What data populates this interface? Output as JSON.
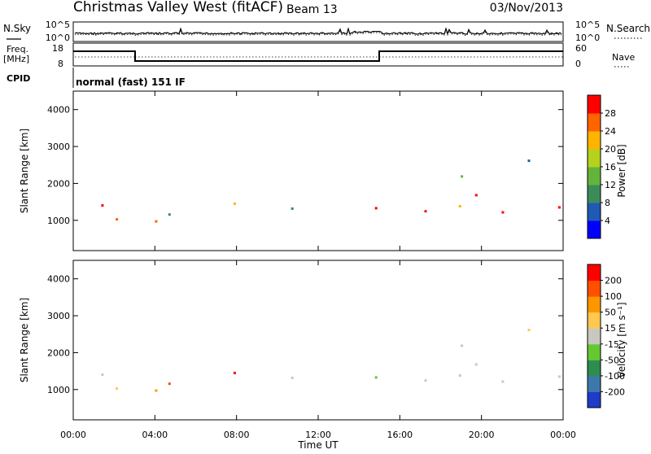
{
  "header": {
    "title": "Christmas Valley West (fitACF)",
    "beam": "Beam 13",
    "date": "03/Nov/2013"
  },
  "left_labels": {
    "nsky": "N.Sky",
    "freq_line1": "Freq.",
    "freq_line2": "[MHz]",
    "cpid": "CPID"
  },
  "right_labels": {
    "nsearch": "N.Search",
    "nave": "Nave"
  },
  "cpid_text": "normal (fast) 151 IF",
  "noise_panel": {
    "left_ticks": [
      "10^5",
      "10^0"
    ],
    "right_ticks": [
      "10^5",
      "10^0"
    ]
  },
  "freq_panel": {
    "left_ticks": [
      "18",
      "8"
    ],
    "right_ticks": [
      "60",
      "0"
    ]
  },
  "chart_data": [
    {
      "type": "heatmap",
      "name": "power",
      "ylabel": "Slant Range [km]",
      "xlabel": "",
      "ylim": [
        180,
        4500
      ],
      "yticks": [
        "1000",
        "2000",
        "3000",
        "4000"
      ],
      "colorbar": {
        "label": "Power [dB]",
        "ticks": [
          "4",
          "8",
          "12",
          "16",
          "20",
          "24",
          "28"
        ],
        "colors": [
          "#0000ff",
          "#1e5ab4",
          "#3c8c5a",
          "#64b43c",
          "#b4d21e",
          "#ffb400",
          "#ff6400",
          "#ff0000"
        ]
      }
    },
    {
      "type": "heatmap",
      "name": "velocity",
      "ylabel": "Slant Range [km]",
      "xlabel": "Time UT",
      "ylim": [
        180,
        4500
      ],
      "yticks": [
        "1000",
        "2000",
        "3000",
        "4000"
      ],
      "xticks": [
        "00:00",
        "04:00",
        "08:00",
        "12:00",
        "16:00",
        "20:00",
        "00:00"
      ],
      "colorbar": {
        "label": "Velocity [m s⁻¹]",
        "ticks": [
          "200",
          "100",
          "50",
          "15",
          "-15",
          "-50",
          "-100",
          "-200"
        ],
        "colors": [
          "#1e3cc8",
          "#3c78aa",
          "#2d8c50",
          "#64c832",
          "#c8c8c0",
          "#ffc850",
          "#ff9600",
          "#ff5000",
          "#ff0000"
        ]
      }
    }
  ]
}
